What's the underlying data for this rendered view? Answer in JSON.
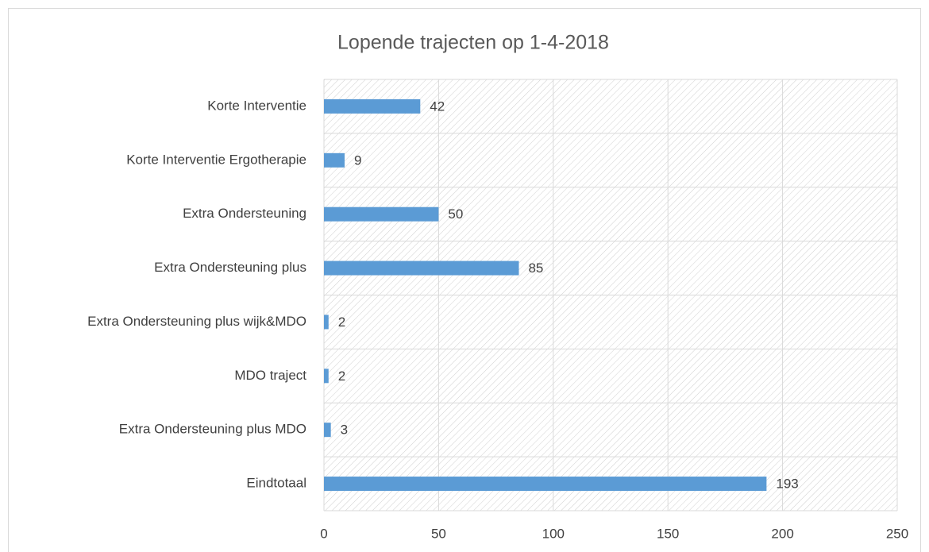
{
  "chart_data": {
    "type": "bar",
    "orientation": "horizontal",
    "title": "Lopende trajecten op 1-4-2018",
    "categories": [
      "Korte Interventie",
      "Korte Interventie Ergotherapie",
      "Extra Ondersteuning",
      "Extra Ondersteuning plus",
      "Extra Ondersteuning plus wijk&MDO",
      "MDO traject",
      "Extra Ondersteuning plus MDO",
      "Eindtotaal"
    ],
    "values": [
      42,
      9,
      50,
      85,
      2,
      2,
      3,
      193
    ],
    "color": "#5b9bd5",
    "xlim": [
      0,
      250
    ],
    "xticks": [
      0,
      50,
      100,
      150,
      200,
      250
    ],
    "grid": true
  }
}
